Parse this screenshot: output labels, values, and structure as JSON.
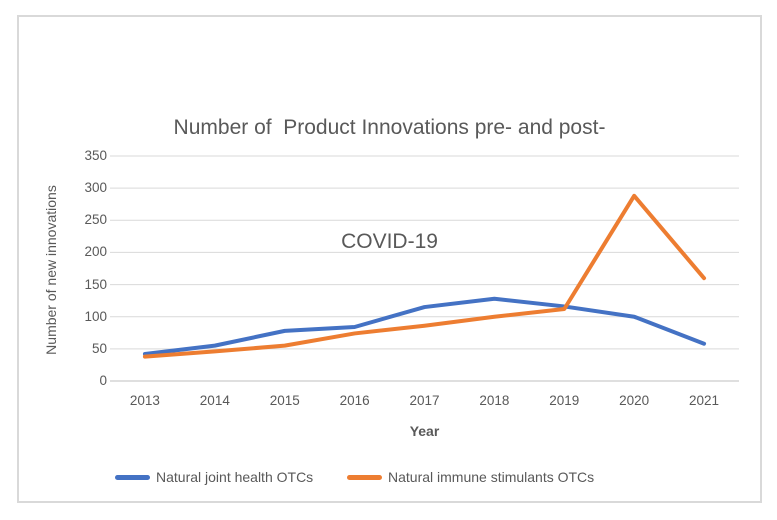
{
  "chart": {
    "title_line1": "Number of  Product Innovations pre- and post-",
    "title_line2": "COVID-19"
  },
  "chart_data": {
    "type": "line",
    "title": "Number of  Product Innovations pre- and post-COVID-19",
    "categories": [
      "2013",
      "2014",
      "2015",
      "2016",
      "2017",
      "2018",
      "2019",
      "2020",
      "2021"
    ],
    "series": [
      {
        "name": "Natural joint health OTCs",
        "color": "#4472C4",
        "values": [
          42,
          55,
          78,
          84,
          115,
          128,
          116,
          100,
          58
        ]
      },
      {
        "name": "Natural immune stimulants OTCs",
        "color": "#ED7D31",
        "values": [
          38,
          46,
          55,
          74,
          86,
          100,
          112,
          288,
          160
        ]
      }
    ],
    "xlabel": "Year",
    "ylabel": "Number of new innovations",
    "ylim": [
      0,
      350
    ],
    "yticks": [
      0,
      50,
      100,
      150,
      200,
      250,
      300,
      350
    ],
    "grid": true,
    "legend_position": "bottom",
    "colors": {
      "grid": "#D9D9D9",
      "axis": "#BFBFBF",
      "text": "#595959",
      "frame_border": "#D9D9D9"
    }
  }
}
